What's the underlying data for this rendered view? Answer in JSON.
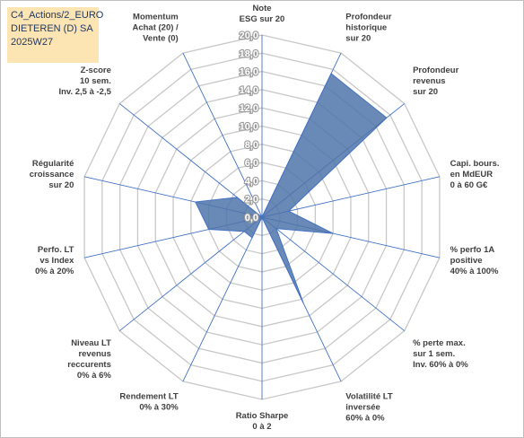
{
  "header": {
    "line1": "C4_Actions/2_EURO",
    "line2": "DIETEREN (D) SA",
    "line3": "2025W27"
  },
  "chart_data": {
    "type": "radar",
    "title": "",
    "rmax": 20,
    "ticks": [
      "0,0",
      "2,0",
      "4,0",
      "6,0",
      "8,0",
      "10,0",
      "12,0",
      "14,0",
      "16,0",
      "18,0",
      "20,0"
    ],
    "axes": [
      [
        "Note",
        "ESG sur 20"
      ],
      [
        "Profondeur",
        "historique",
        "sur 20"
      ],
      [
        "Profondeur",
        "revenus",
        "sur 20"
      ],
      [
        "Capi. bours.",
        "en MdEUR",
        "0 à 60 G€"
      ],
      [
        "% perfo 1A",
        "positive",
        "40% à 100%"
      ],
      [
        "% perte max.",
        "sur 1 sem.",
        "Inv. 60% à 0%"
      ],
      [
        "Volatilité LT",
        "inversée",
        "60% à 0%"
      ],
      [
        "Ratio Sharpe",
        "0 à 2"
      ],
      [
        "Rendement LT",
        "0% à 30%"
      ],
      [
        "Niveau LT",
        "revenus",
        "reccurents",
        "0% à 6%"
      ],
      [
        "Perfo. LT",
        "vs Index",
        "0% à 20%"
      ],
      [
        "Régularité",
        "croissance",
        "sur 20"
      ],
      [
        "Z-score",
        "10 sem.",
        "Inv. 2,5 à -2,5"
      ],
      [
        "Momentum",
        "Achat (20) /",
        "Vente (0)"
      ]
    ],
    "series": [
      {
        "values": [
          0,
          17.5,
          17.5,
          3,
          8,
          2,
          10.5,
          0,
          2.5,
          2.5,
          6,
          7.5,
          3.5,
          0
        ]
      }
    ],
    "colors": {
      "fill": "#4f74a9",
      "stroke": "#4472c4",
      "grid": "#c8c8c8",
      "spoke": "#4472c4"
    }
  }
}
